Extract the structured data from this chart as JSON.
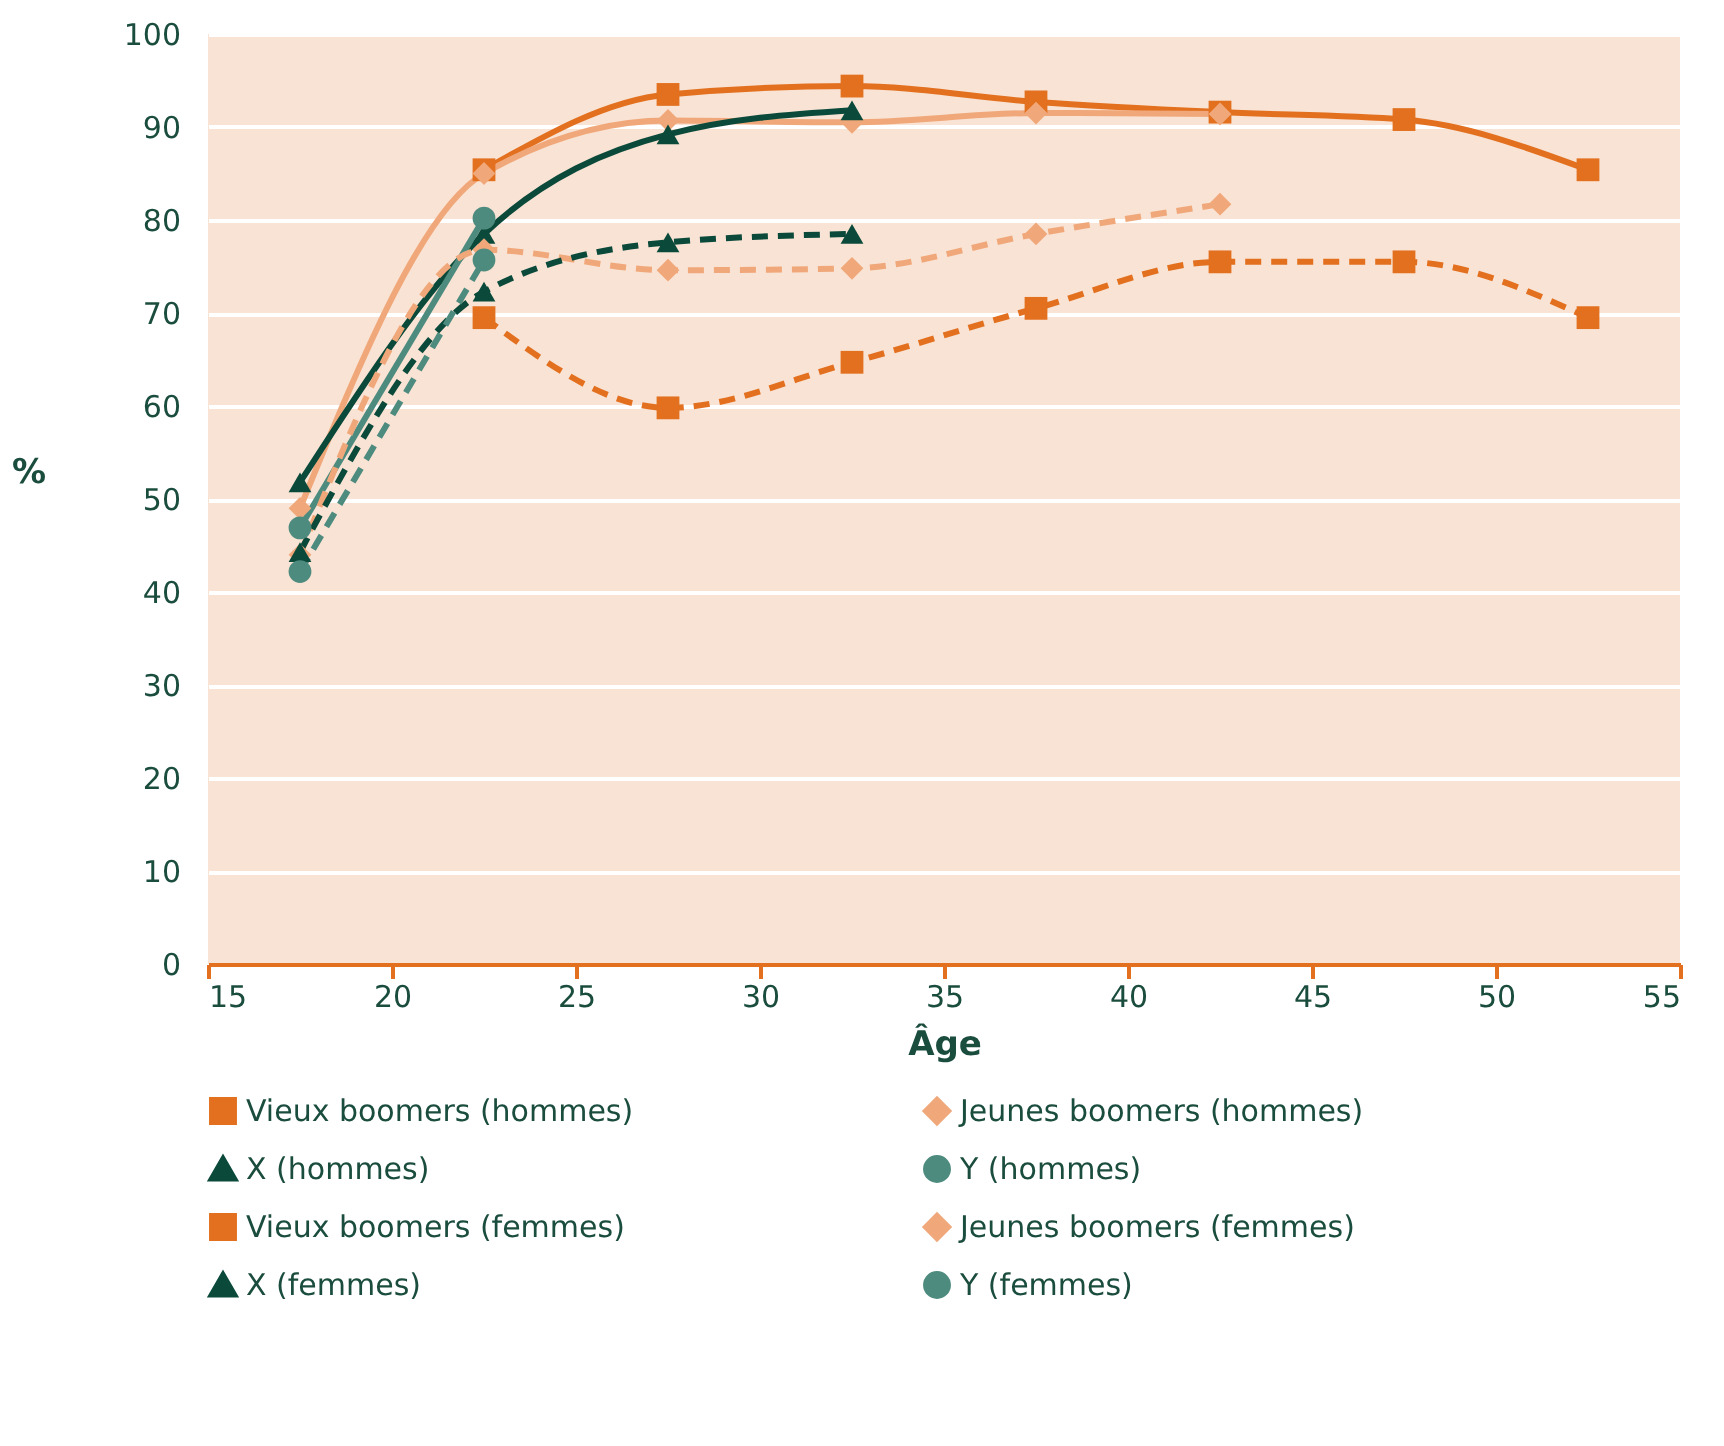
{
  "chart_data": {
    "type": "line",
    "xlabel": "Âge",
    "ylabel": "%",
    "xlim": [
      15,
      55
    ],
    "ylim": [
      0,
      100
    ],
    "xticks": [
      15,
      20,
      25,
      30,
      35,
      40,
      45,
      50,
      55
    ],
    "yticks": [
      0,
      10,
      20,
      30,
      40,
      50,
      60,
      70,
      80,
      90,
      100
    ],
    "grid": "y",
    "legend": "bottom",
    "series": [
      {
        "name": "Vieux boomers (hommes)",
        "color": "#e2701f",
        "marker": "square",
        "line_style": "solid",
        "x": [
          22.5,
          27.5,
          32.5,
          37.5,
          42.5,
          47.5,
          52.5
        ],
        "values": [
          85.4,
          93.5,
          94.4,
          92.7,
          91.6,
          90.8,
          85.4
        ]
      },
      {
        "name": "Jeunes boomers (hommes)",
        "color": "#f0a87a",
        "marker": "diamond",
        "line_style": "solid",
        "x": [
          17.5,
          22.5,
          27.5,
          32.5,
          37.5,
          42.5
        ],
        "values": [
          49,
          85,
          90.7,
          90.5,
          91.5,
          91.4
        ]
      },
      {
        "name": "X (hommes)",
        "color": "#0b4a3a",
        "marker": "triangle",
        "line_style": "solid",
        "x": [
          17.5,
          22.5,
          27.5,
          32.5
        ],
        "values": [
          51.8,
          78.5,
          89.2,
          91.8
        ]
      },
      {
        "name": "Y (hommes)",
        "color": "#4e8b7f",
        "marker": "circle",
        "line_style": "solid",
        "x": [
          17.5,
          22.5
        ],
        "values": [
          46.9,
          80.2
        ]
      },
      {
        "name": "Vieux boomers (femmes)",
        "color": "#e2701f",
        "marker": "square",
        "line_style": "dashed",
        "x": [
          22.5,
          27.5,
          32.5,
          37.5,
          42.5,
          47.5,
          52.5
        ],
        "values": [
          69.5,
          59.8,
          64.7,
          70.5,
          75.5,
          75.5,
          69.5
        ]
      },
      {
        "name": "Jeunes boomers (femmes)",
        "color": "#f0a87a",
        "marker": "diamond",
        "line_style": "dashed",
        "x": [
          17.5,
          22.5,
          27.5,
          32.5,
          37.5,
          42.5
        ],
        "values": [
          44,
          76.8,
          74.6,
          74.8,
          78.5,
          81.7
        ]
      },
      {
        "name": "X (femmes)",
        "color": "#0b4a3a",
        "marker": "triangle",
        "line_style": "dashed",
        "x": [
          17.5,
          22.5,
          27.5,
          32.5
        ],
        "values": [
          44.3,
          72.3,
          77.6,
          78.5
        ]
      },
      {
        "name": "Y (femmes)",
        "color": "#4e8b7f",
        "marker": "circle",
        "line_style": "dashed",
        "x": [
          17.5,
          22.5
        ],
        "values": [
          42.2,
          75.7
        ]
      }
    ]
  }
}
